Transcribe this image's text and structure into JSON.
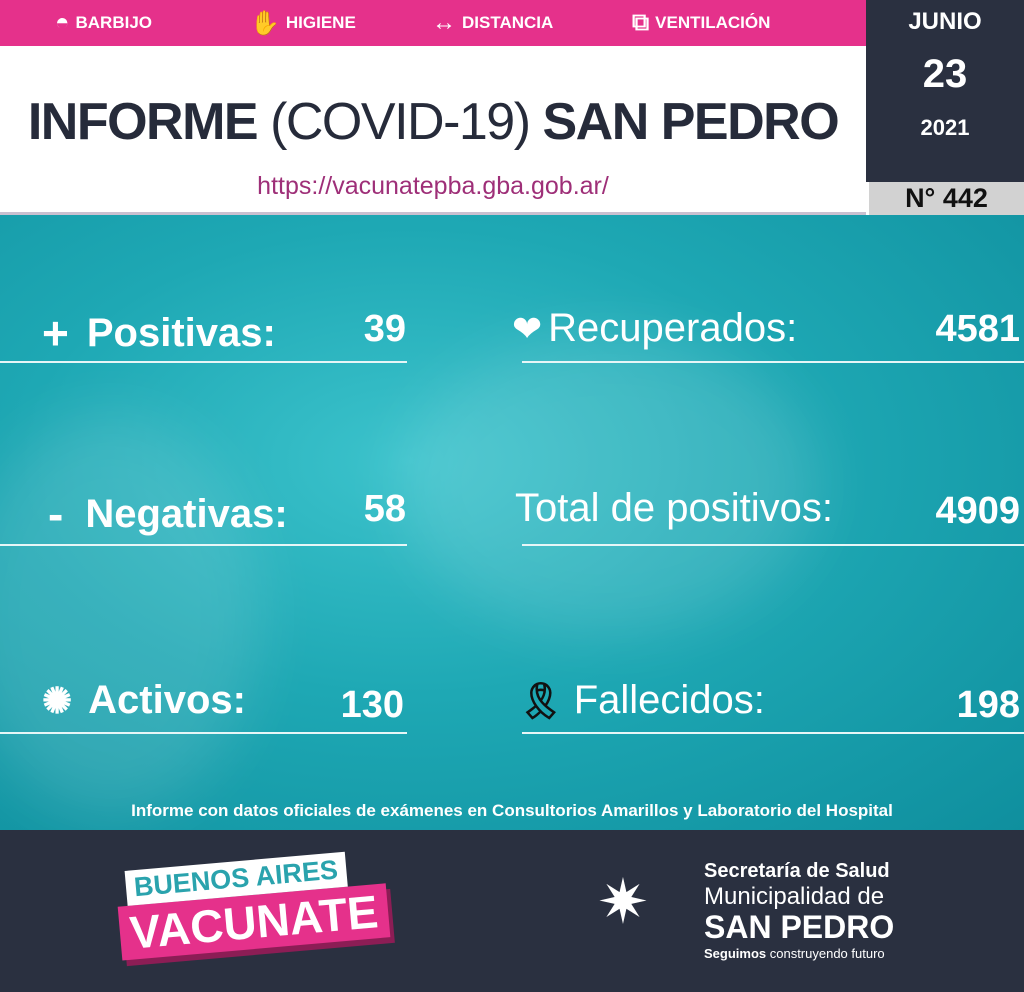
{
  "header": {
    "tips": [
      {
        "icon": "mask-icon",
        "label": "BARBIJO"
      },
      {
        "icon": "handwash-icon",
        "label": "HIGIENE"
      },
      {
        "icon": "distance-icon",
        "label": "DISTANCIA"
      },
      {
        "icon": "window-icon",
        "label": "VENTILACIÓN"
      }
    ],
    "title_bold_1": "INFORME",
    "title_light": "(COVID-19)",
    "title_bold_2": "SAN PEDRO",
    "url": "https://vacunatepba.gba.gob.ar/"
  },
  "date": {
    "month": "JUNIO",
    "day": "23",
    "year": "2021",
    "number": "N° 442"
  },
  "stats": {
    "positivas": {
      "icon": "plus-icon",
      "label": "Positivas:",
      "value": "39"
    },
    "negativas": {
      "icon": "minus-icon",
      "label": "Negativas:",
      "value": "58"
    },
    "activos": {
      "icon": "virus-icon",
      "label": "Activos:",
      "value": "130"
    },
    "recuperados": {
      "icon": "heart-circle-icon",
      "label": "Recuperados:",
      "value": "4581"
    },
    "total": {
      "label": "Total de positivos:",
      "value": "4909"
    },
    "fallecidos": {
      "icon": "mourning-ribbon-icon",
      "label": "Fallecidos:",
      "value": "198"
    }
  },
  "note": "Informe con datos oficiales de exámenes en Consultorios Amarillos y Laboratorio del Hospital",
  "footer": {
    "campaign_top": "BUENOS AIRES",
    "campaign_bottom": "VACUNATE",
    "org_line1": "Secretaría de Salud",
    "org_line2": "Municipalidad de",
    "org_line3": "SAN PEDRO",
    "slogan_bold": "Seguimos",
    "slogan_rest": " construyendo futuro"
  },
  "colors": {
    "pink": "#e5318b",
    "dark": "#2a3040",
    "teal": "#1ea8b4",
    "gray": "#d2d2d2"
  }
}
